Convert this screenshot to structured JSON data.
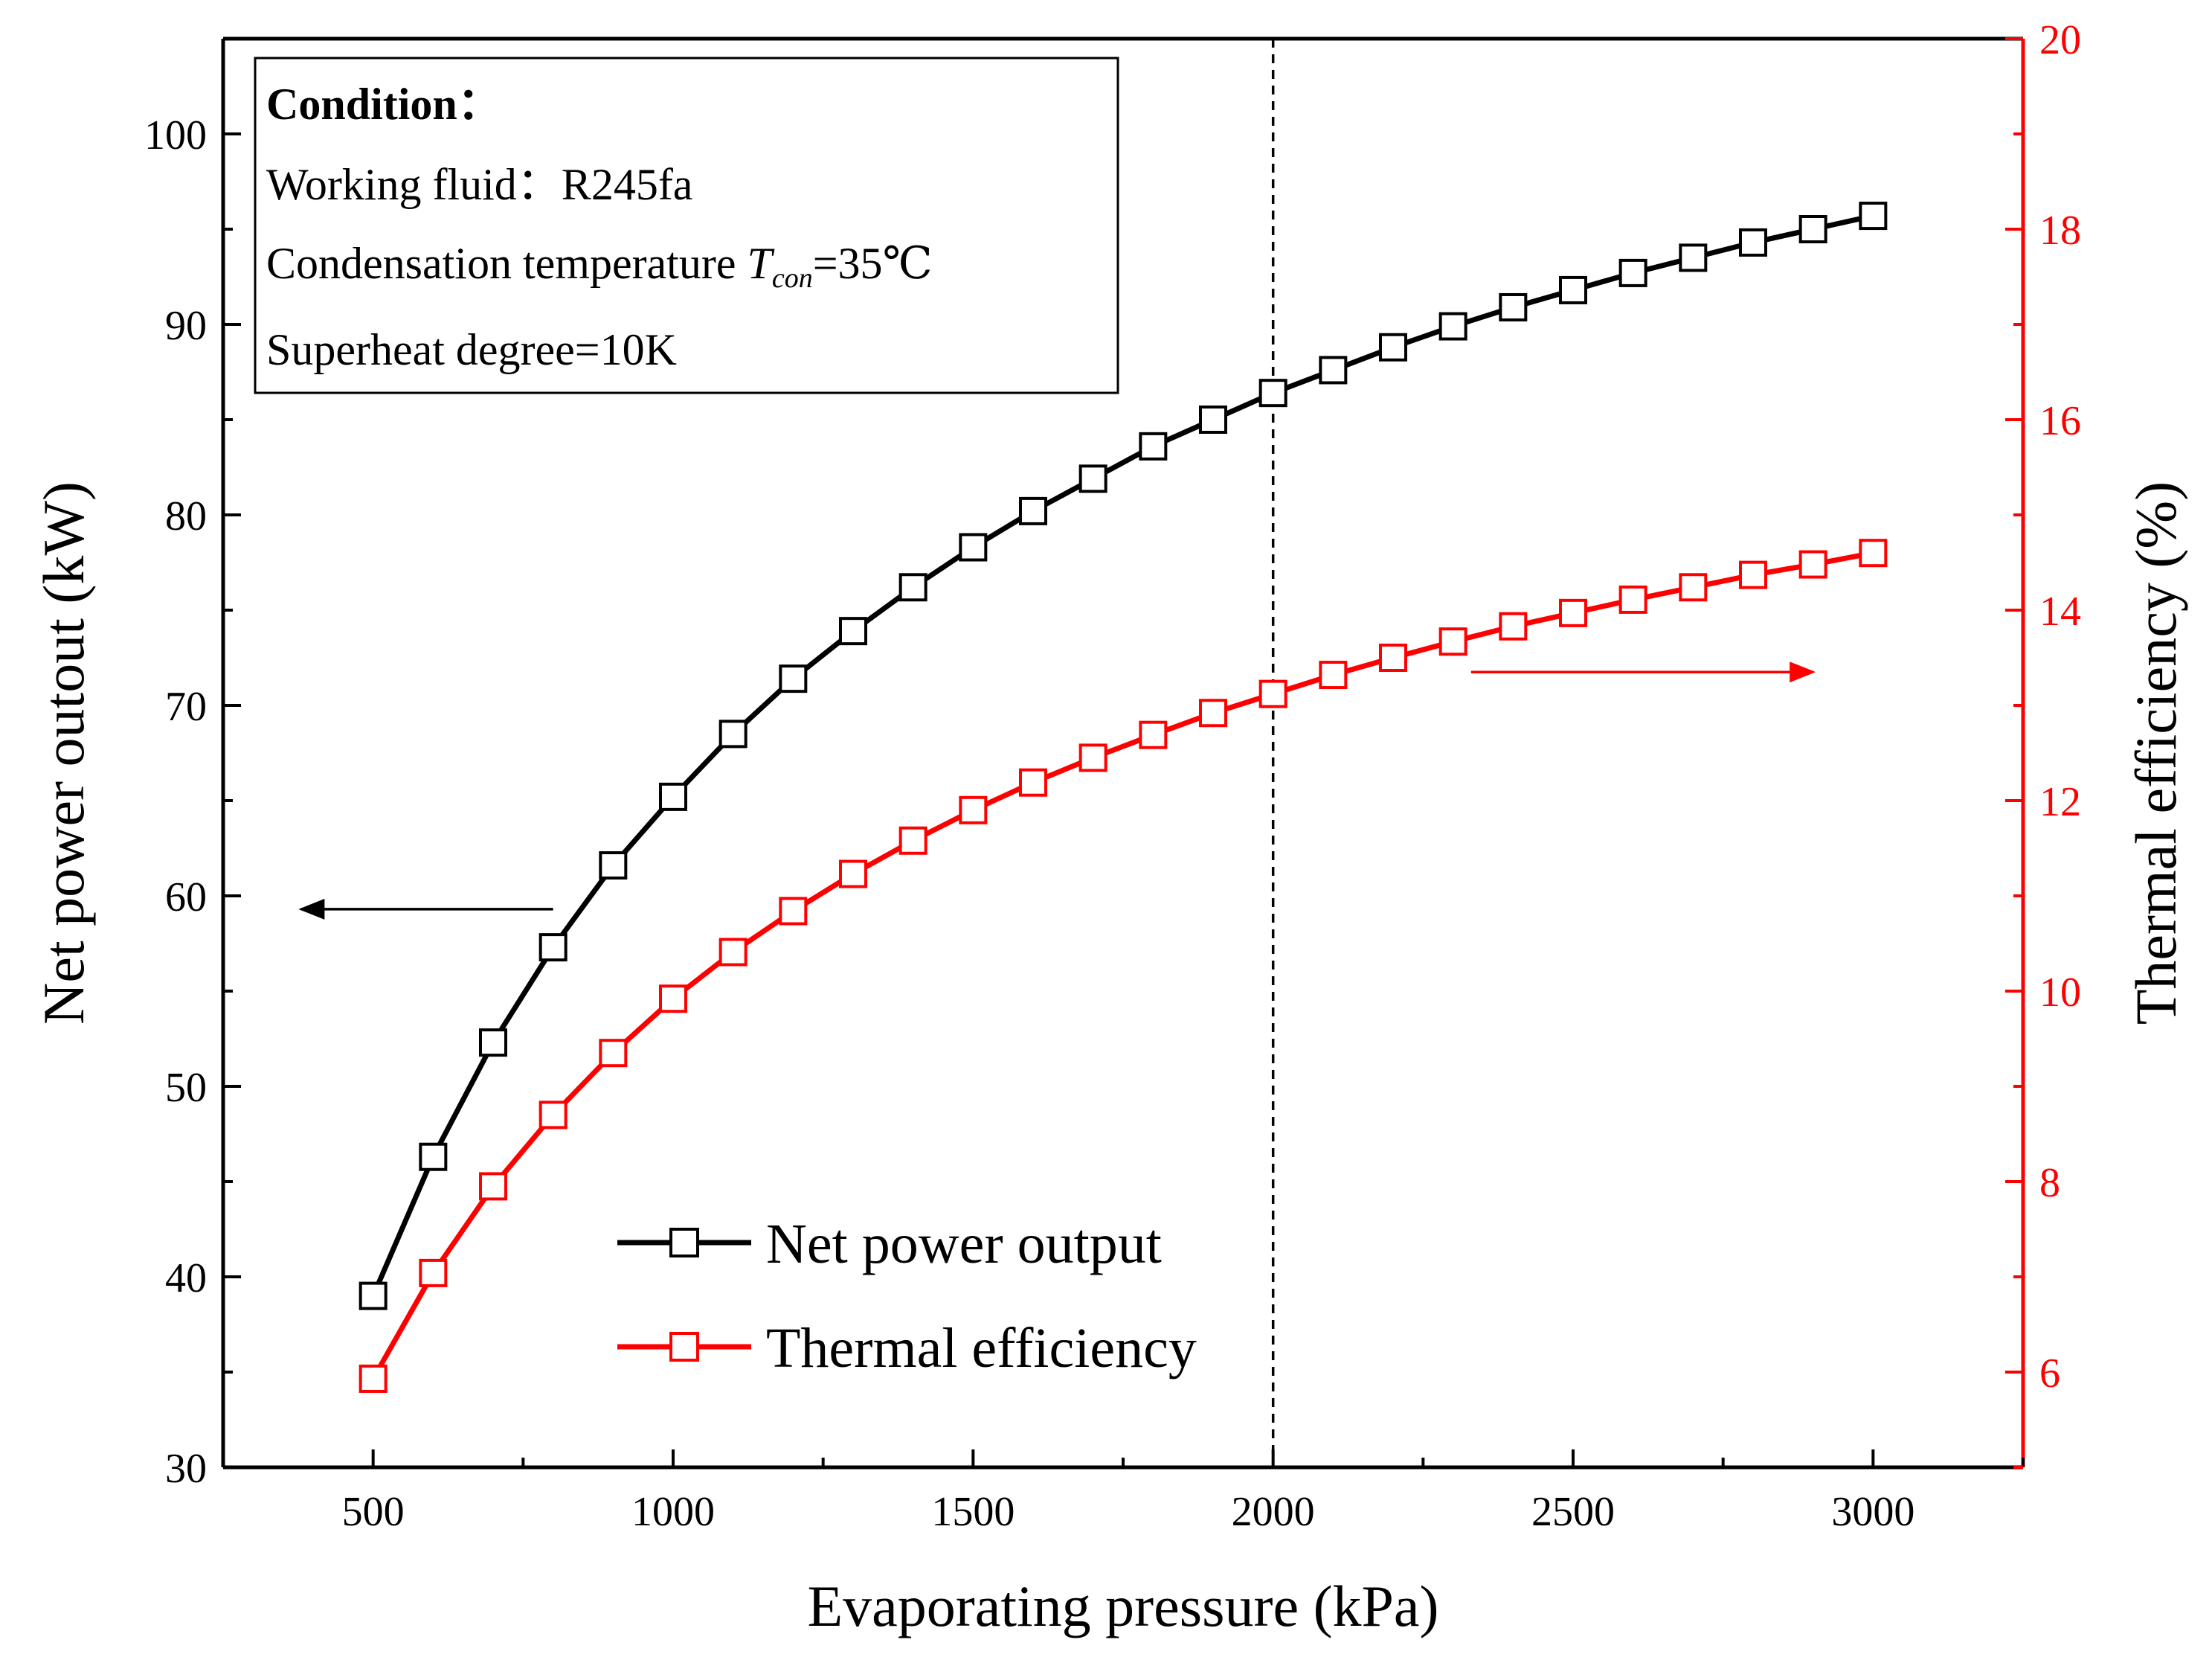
{
  "chart_data": {
    "type": "line",
    "xlabel": "Evaporating pressure (kPa)",
    "ylabel_left": "Net power outout (kW)",
    "ylabel_right": "Thermal efficiency (%)",
    "xlim": [
      250,
      3250
    ],
    "ylim_left": [
      30,
      105
    ],
    "ylim_right": [
      5,
      20
    ],
    "x_ticks": [
      500,
      1000,
      1500,
      2000,
      2500,
      3000
    ],
    "x_tick_labels": [
      "500",
      "1000",
      "1500",
      "2000",
      "2500",
      "3000"
    ],
    "y_left_ticks": [
      30,
      40,
      50,
      60,
      70,
      80,
      90,
      100
    ],
    "y_left_tick_labels": [
      "30",
      "40",
      "50",
      "60",
      "70",
      "80",
      "90",
      "100"
    ],
    "y_right_ticks": [
      6,
      8,
      10,
      12,
      14,
      16,
      18,
      20
    ],
    "y_right_tick_labels": [
      "6",
      "8",
      "10",
      "12",
      "14",
      "16",
      "18",
      "20"
    ],
    "x": [
      500,
      600,
      700,
      800,
      900,
      1000,
      1100,
      1200,
      1300,
      1400,
      1500,
      1600,
      1700,
      1800,
      1900,
      2000,
      2100,
      2200,
      2300,
      2400,
      2500,
      2600,
      2700,
      2800,
      2900,
      3000
    ],
    "series": [
      {
        "name": "Net power output",
        "axis": "left",
        "color": "#000000",
        "values": [
          39.0,
          46.3,
          52.3,
          57.3,
          61.6,
          65.2,
          68.5,
          71.4,
          73.9,
          76.2,
          78.3,
          80.2,
          81.9,
          83.6,
          85.0,
          86.4,
          87.6,
          88.8,
          89.9,
          90.9,
          91.8,
          92.7,
          93.5,
          94.3,
          95.0,
          95.7
        ]
      },
      {
        "name": "Thermal efficiency",
        "axis": "right",
        "color": "#ff0000",
        "values": [
          5.93,
          7.04,
          7.95,
          8.7,
          9.35,
          9.92,
          10.41,
          10.84,
          11.23,
          11.58,
          11.9,
          12.19,
          12.45,
          12.69,
          12.92,
          13.12,
          13.32,
          13.5,
          13.67,
          13.83,
          13.97,
          14.11,
          14.24,
          14.37,
          14.48,
          14.6
        ]
      }
    ],
    "reference_line": {
      "x": 2000,
      "style": "dashed"
    },
    "condition_box": {
      "title": "Condition：",
      "line1": "Working fluid：R245fa",
      "line2_prefix": "Condensation temperature ",
      "line2_var": "T",
      "line2_sub": "con",
      "line2_suffix": "=35℃",
      "line3": "Superheat degree=10K"
    },
    "annotations": [
      {
        "direction": "left",
        "x_from": 800,
        "x_to": 380,
        "y_left": 59.3,
        "color": "#000000"
      },
      {
        "direction": "right",
        "x_from": 2330,
        "x_to": 2900,
        "y_right": 13.35,
        "color": "#ff0000"
      }
    ],
    "legend_position": "bottom-center"
  }
}
